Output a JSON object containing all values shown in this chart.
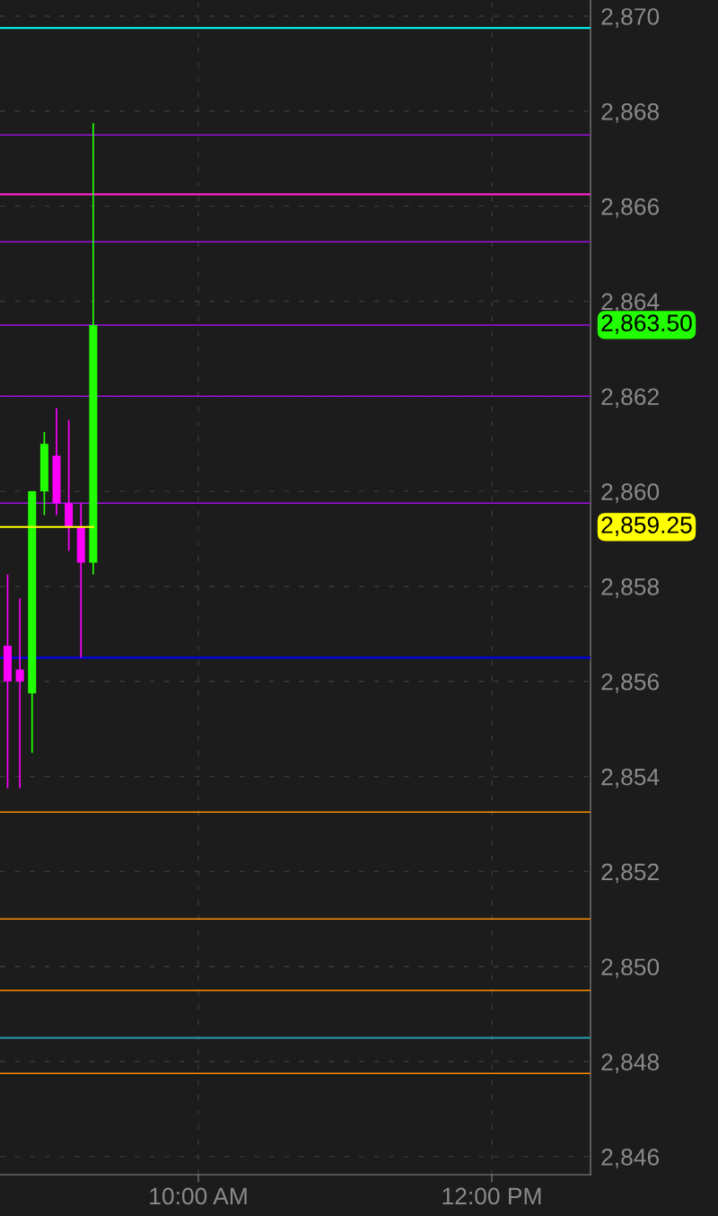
{
  "chart_data": {
    "type": "candlestick",
    "x": [
      8.7,
      8.7833,
      8.8667,
      8.95,
      9.0333,
      9.1167,
      9.2,
      9.2833
    ],
    "ohlc": [
      [
        2856.75,
        2858.25,
        2853.75,
        2856.0
      ],
      [
        2856.25,
        2857.75,
        2853.75,
        2856.0
      ],
      [
        2855.75,
        2860.0,
        2854.5,
        2860.0
      ],
      [
        2860.0,
        2861.25,
        2859.5,
        2861.0
      ],
      [
        2860.75,
        2861.75,
        2859.5,
        2859.75
      ],
      [
        2859.75,
        2861.5,
        2858.75,
        2859.25
      ],
      [
        2859.25,
        2859.75,
        2856.5,
        2858.5
      ],
      [
        2858.5,
        2867.75,
        2858.25,
        2863.5
      ]
    ],
    "colors": [
      "#ff00ff",
      "#ff00ff",
      "#22ff00",
      "#22ff00",
      "#ff00ff",
      "#ff00ff",
      "#ff00ff",
      "#22ff00"
    ],
    "series": [
      {
        "type": "line",
        "color": "#ffff00",
        "x": [
          8.65,
          9.2833
        ],
        "values": [
          2859.25,
          2859.25
        ]
      }
    ],
    "annotations": [
      "2,859.25"
    ],
    "ref_lines": [
      {
        "axis": "y",
        "value": 2869.75,
        "color": "#00e5e5"
      },
      {
        "axis": "y",
        "value": 2867.5,
        "color": "#9b10e0"
      },
      {
        "axis": "y",
        "value": 2866.25,
        "color": "#ff22cc"
      },
      {
        "axis": "y",
        "value": 2865.25,
        "color": "#9b10e0"
      },
      {
        "axis": "y",
        "value": 2863.5,
        "color": "#9b10e0",
        "label": "2,863.50"
      },
      {
        "axis": "y",
        "value": 2862.0,
        "color": "#9b10e0"
      },
      {
        "axis": "y",
        "value": 2859.75,
        "color": "#9b10e0"
      },
      {
        "axis": "y",
        "value": 2856.5,
        "color": "#0000ee"
      },
      {
        "axis": "y",
        "value": 2853.25,
        "color": "#ff8c00"
      },
      {
        "axis": "y",
        "value": 2851.0,
        "color": "#ff8c00"
      },
      {
        "axis": "y",
        "value": 2849.5,
        "color": "#ff8c00"
      },
      {
        "axis": "y",
        "value": 2848.5,
        "color": "#2a8fa0"
      },
      {
        "axis": "y",
        "value": 2847.75,
        "color": "#ff8c00"
      }
    ],
    "xlim": [
      8.648,
      12.673
    ],
    "xticks": [
      {
        "value": 10,
        "label": "10:00 AM"
      },
      {
        "value": 12,
        "label": "12:00 PM"
      }
    ],
    "ylim": [
      2845.62,
      2870.34
    ],
    "yticks": [
      {
        "value": 2846,
        "label": "2,846"
      },
      {
        "value": 2848,
        "label": "2,848"
      },
      {
        "value": 2850,
        "label": "2,850"
      },
      {
        "value": 2852,
        "label": "2,852"
      },
      {
        "value": 2854,
        "label": "2,854"
      },
      {
        "value": 2856,
        "label": "2,856"
      },
      {
        "value": 2858,
        "label": "2,858"
      },
      {
        "value": 2860,
        "label": "2,860"
      },
      {
        "value": 2862,
        "label": "2,862"
      },
      {
        "value": 2864,
        "label": "2,864"
      },
      {
        "value": 2866,
        "label": "2,866"
      },
      {
        "value": 2868,
        "label": "2,868"
      },
      {
        "value": 2870,
        "label": "2,870"
      }
    ],
    "grid": true
  }
}
